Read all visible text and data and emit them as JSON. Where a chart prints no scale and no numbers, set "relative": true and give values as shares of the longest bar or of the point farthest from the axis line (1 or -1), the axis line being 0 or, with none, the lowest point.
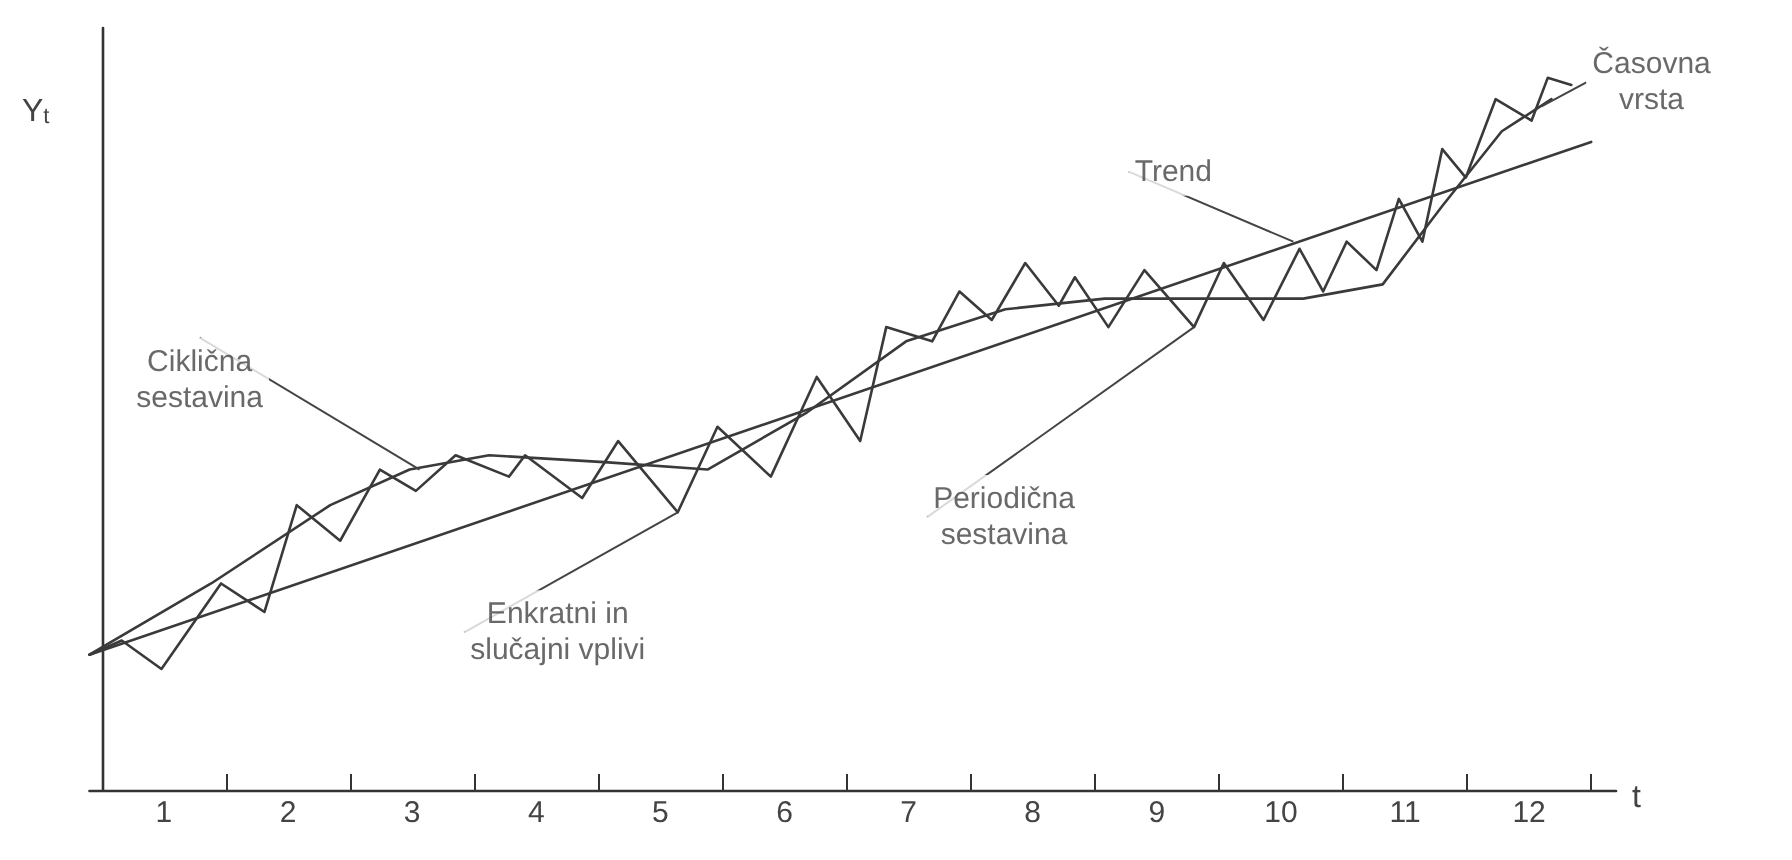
{
  "chart_data": {
    "type": "line",
    "relative": true,
    "xlabel": "t",
    "ylabel": "Y$_{t}$",
    "xlim": [
      -0.1,
      12.2
    ],
    "xticks": [
      {
        "value": 1,
        "label": null
      },
      {
        "value": 2,
        "label": null
      },
      {
        "value": 3,
        "label": null
      },
      {
        "value": 4,
        "label": null
      },
      {
        "value": 5,
        "label": null
      },
      {
        "value": 6,
        "label": null
      },
      {
        "value": 7,
        "label": null
      },
      {
        "value": 8,
        "label": null
      },
      {
        "value": 9,
        "label": null
      },
      {
        "value": 10,
        "label": null
      },
      {
        "value": 11,
        "label": null
      },
      {
        "value": 12,
        "label": null
      },
      {
        "value": 0.5,
        "label": "1"
      },
      {
        "value": 1.5,
        "label": "2"
      },
      {
        "value": 2.5,
        "label": "3"
      },
      {
        "value": 3.5,
        "label": "4"
      },
      {
        "value": 4.5,
        "label": "5"
      },
      {
        "value": 5.5,
        "label": "6"
      },
      {
        "value": 6.5,
        "label": "7"
      },
      {
        "value": 7.5,
        "label": "8"
      },
      {
        "value": 8.5,
        "label": "9"
      },
      {
        "value": 9.5,
        "label": "10"
      },
      {
        "value": 10.5,
        "label": "11"
      },
      {
        "value": 11.5,
        "label": "12"
      }
    ],
    "series": [
      {
        "color": "#3a3a3a",
        "x": [
          -0.1,
          0.16,
          0.48,
          0.96,
          1.31,
          1.57,
          1.92,
          2.24,
          2.53,
          2.85,
          3.28,
          3.41,
          3.87,
          4.16,
          4.64,
          4.96,
          5.39,
          5.76,
          6.11,
          6.32,
          6.69,
          6.91,
          7.17,
          7.44,
          7.71,
          7.84,
          8.11,
          8.4,
          8.8,
          9.04,
          9.36,
          9.65,
          9.84,
          10.03,
          10.27,
          10.45,
          10.64,
          10.8,
          10.99,
          11.23,
          11.52,
          11.65,
          11.84
        ],
        "values": [
          0.19,
          0.21,
          0.17,
          0.29,
          0.25,
          0.4,
          0.35,
          0.45,
          0.42,
          0.47,
          0.44,
          0.47,
          0.41,
          0.49,
          0.39,
          0.51,
          0.44,
          0.58,
          0.49,
          0.65,
          0.63,
          0.7,
          0.66,
          0.74,
          0.68,
          0.72,
          0.65,
          0.73,
          0.65,
          0.74,
          0.66,
          0.76,
          0.7,
          0.77,
          0.73,
          0.83,
          0.77,
          0.9,
          0.86,
          0.97,
          0.94,
          1,
          0.99
        ]
      },
      {
        "color": "#3a3a3a",
        "x": [
          -0.1,
          0.88,
          1.84,
          2.48,
          3.12,
          4.08,
          4.88,
          5.68,
          6.48,
          7.28,
          8.08,
          8.88,
          9.68,
          10.32,
          10.8,
          11.28,
          11.68
        ],
        "values": [
          0.19,
          0.29,
          0.4,
          0.45,
          0.47,
          0.46,
          0.45,
          0.53,
          0.63,
          0.675,
          0.69,
          0.69,
          0.69,
          0.71,
          0.82,
          0.925,
          0.97
        ]
      },
      {
        "color": "#3a3a3a",
        "x": [
          -0.1,
          12
        ],
        "values": [
          0.19,
          0.91
        ]
      }
    ],
    "annotations": [
      {
        "text": "Časovna vrsta",
        "x": 11.6,
        "y": 0.96
      },
      {
        "text": "Trend",
        "x": 9.6,
        "y": 0.77
      },
      {
        "text": "Ciklična sestavina",
        "x": 2.56,
        "y": 0.45
      },
      {
        "text": "Enkratni in slučajni vplivi",
        "x": 4.64,
        "y": 0.39
      },
      {
        "text": "Periodična sestavina",
        "x": 8.8,
        "y": 0.65
      }
    ],
    "marker": "none",
    "line_style": "solid",
    "grid": false
  }
}
